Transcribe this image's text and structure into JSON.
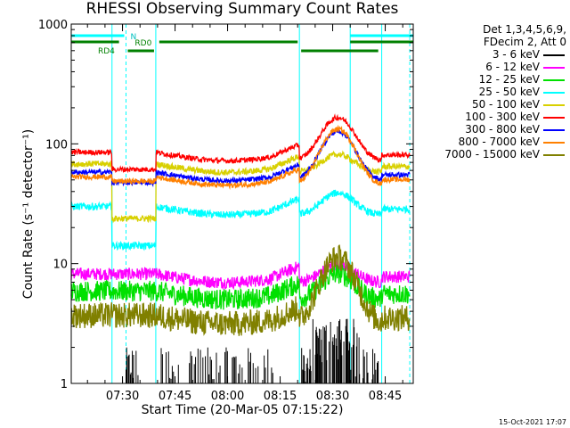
{
  "chart_data": {
    "type": "line",
    "title": "RHESSI Observing Summary Count Rates",
    "xlabel": "Start Time (20-Mar-05 07:15:22)",
    "ylabel": "Count Rate (s⁻¹ detector⁻¹)",
    "yscale": "log",
    "ylim": [
      1,
      1000
    ],
    "xlim": [
      "07:15:22",
      "08:53:00"
    ],
    "x_ticks": [
      "07:30",
      "07:45",
      "08:00",
      "08:15",
      "08:30",
      "08:45"
    ],
    "y_ticks": [
      "1",
      "10",
      "100",
      "1000"
    ],
    "legend_header": [
      "Det 1,3,4,5,6,9,",
      "FDecim 2, Att 0"
    ],
    "footer": "15-Oct-2021 17:07",
    "state_labels": [
      "N",
      "RD0",
      "RD4"
    ],
    "series": [
      {
        "name": "3 - 6 keV",
        "color": "#000000"
      },
      {
        "name": "6 - 12 keV",
        "color": "#ff00ff"
      },
      {
        "name": "12 - 25 keV",
        "color": "#00e000"
      },
      {
        "name": "25 - 50 keV",
        "color": "#00ffff"
      },
      {
        "name": "50 - 100 keV",
        "color": "#d8d000"
      },
      {
        "name": "100 - 300 keV",
        "color": "#ff0000"
      },
      {
        "name": "300 - 800 keV",
        "color": "#0000ff"
      },
      {
        "name": "800 - 7000 keV",
        "color": "#ff8000"
      },
      {
        "name": "7000 - 15000 keV",
        "color": "#808000"
      }
    ]
  }
}
